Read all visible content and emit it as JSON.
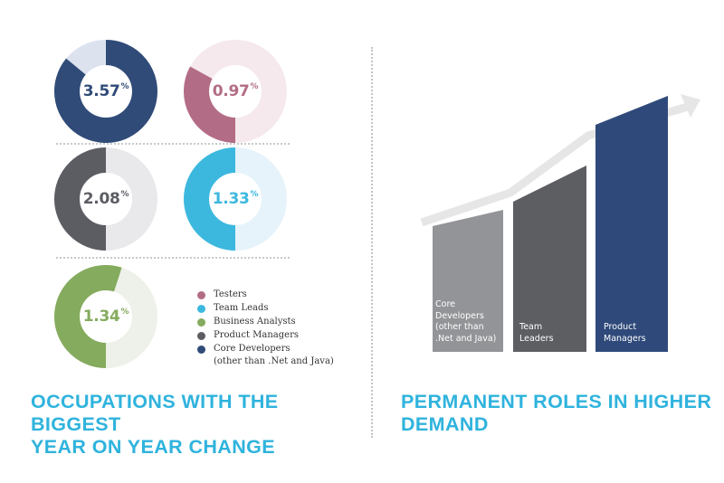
{
  "chart_data": [
    {
      "type": "donut",
      "unit": "%",
      "items": [
        {
          "name": "Core Developers (other than .Net and Java)",
          "value": 3.57,
          "display": "3.57",
          "color": "#304b78",
          "track": "#dde2ef"
        },
        {
          "name": "Testers",
          "value": 0.97,
          "display": "0.97",
          "color": "#b36c86",
          "track": "#f5e9ed"
        },
        {
          "name": "Product Managers",
          "value": 2.08,
          "display": "2.08",
          "color": "#5b5d63",
          "track": "#e9e9ec"
        },
        {
          "name": "Team Leads",
          "value": 1.33,
          "display": "1.33",
          "color": "#3cb8df",
          "track": "#e6f3fa"
        },
        {
          "name": "Business Analysts",
          "value": 1.34,
          "display": "1.34",
          "color": "#85ab5e",
          "track": "#eef1e9"
        }
      ],
      "legend": [
        {
          "label": "Testers",
          "color": "#b36c86"
        },
        {
          "label": "Team Leads",
          "color": "#3cb8df"
        },
        {
          "label": "Business Analysts",
          "color": "#85ab5e"
        },
        {
          "label": "Product Managers",
          "color": "#5b5d63"
        },
        {
          "label": "Core Developers",
          "sub": "(other than .Net and Java)",
          "color": "#304b78"
        }
      ],
      "title": "OCCUPATIONS WITH THE BIGGEST YEAR ON YEAR CHANGE"
    },
    {
      "type": "bar",
      "categories": [
        "Core Developers (other than .Net and Java)",
        "Team Leaders",
        "Product Managers"
      ],
      "values": [
        1,
        2,
        3
      ],
      "bar_colors": [
        "#939497",
        "#5d5e62",
        "#2f4a7a"
      ],
      "labels": [
        [
          "Core",
          "Developers",
          "(other than",
          ".Net and Java)"
        ],
        [
          "Team",
          "Leaders"
        ],
        [
          "Product",
          "Managers"
        ]
      ],
      "trend_arrow": "rising",
      "title": "PERMANENT ROLES IN HIGHER DEMAND"
    }
  ],
  "titles": {
    "left": [
      "OCCUPATIONS WITH THE BIGGEST",
      "YEAR ON YEAR CHANGE"
    ],
    "right": [
      "PERMANENT ROLES IN HIGHER",
      "DEMAND"
    ]
  },
  "colors": {
    "title": "#2fb3dd",
    "arrow": "#e6e6e6"
  }
}
